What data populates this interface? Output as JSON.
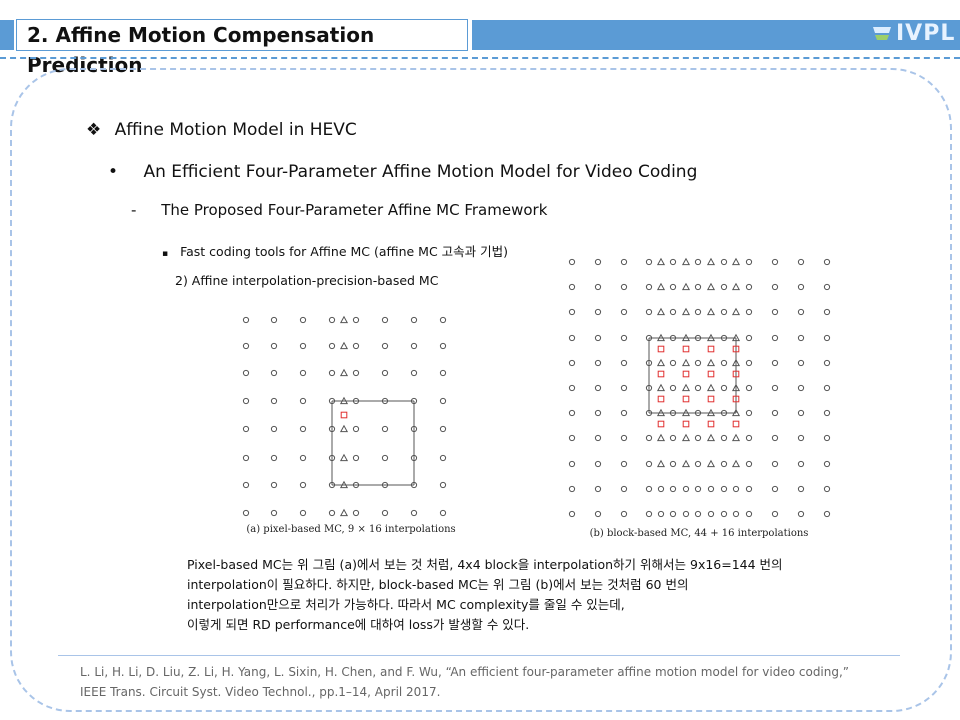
{
  "header": {
    "title": "2. Affine Motion Compensation Prediction",
    "logo": "IVPL",
    "colors": {
      "accent": "#5b9bd5",
      "frame": "#a9c4e8",
      "marker": "#e03030"
    }
  },
  "bullets": {
    "l1_bullet": "❖",
    "l1": "Affine Motion Model in HEVC",
    "l2_bullet": "•",
    "l2": "An Efficient Four-Parameter Affine Motion Model for Video Coding",
    "l3_bullet": "-",
    "l3": "The Proposed Four-Parameter Affine MC Framework",
    "l4_bullet": "▪",
    "l4": "Fast coding tools for Affine MC (affine MC 고속과 기법)",
    "sub": "2) Affine interpolation-precision-based MC"
  },
  "figures": {
    "a_caption": "(a) pixel-based MC, 9 × 16 interpolations",
    "b_caption": "(b) block-based MC, 44 + 16 interpolations"
  },
  "paragraph": [
    "Pixel-based MC는 위 그림 (a)에서 보는 것 처럼, 4x4 block을 interpolation하기 위해서는 9x16=144 번의",
    "interpolation이 필요하다. 하지만, block-based MC는 위 그림 (b)에서 보는 것처럼 60 번의",
    "interpolation만으로 처리가 가능하다. 따라서 MC complexity를 줄일 수 있는데,",
    "이렇게 되면 RD performance에 대하여 loss가 발생할 수 있다."
  ],
  "reference": [
    "L. Li, H. Li, D. Liu, Z. Li, H. Yang, L. Sixin, H. Chen, and F. Wu, “An efficient four-parameter affine motion model for video coding,”",
    "IEEE Trans. Circuit Syst. Video Technol., pp.1–14, April 2017."
  ]
}
